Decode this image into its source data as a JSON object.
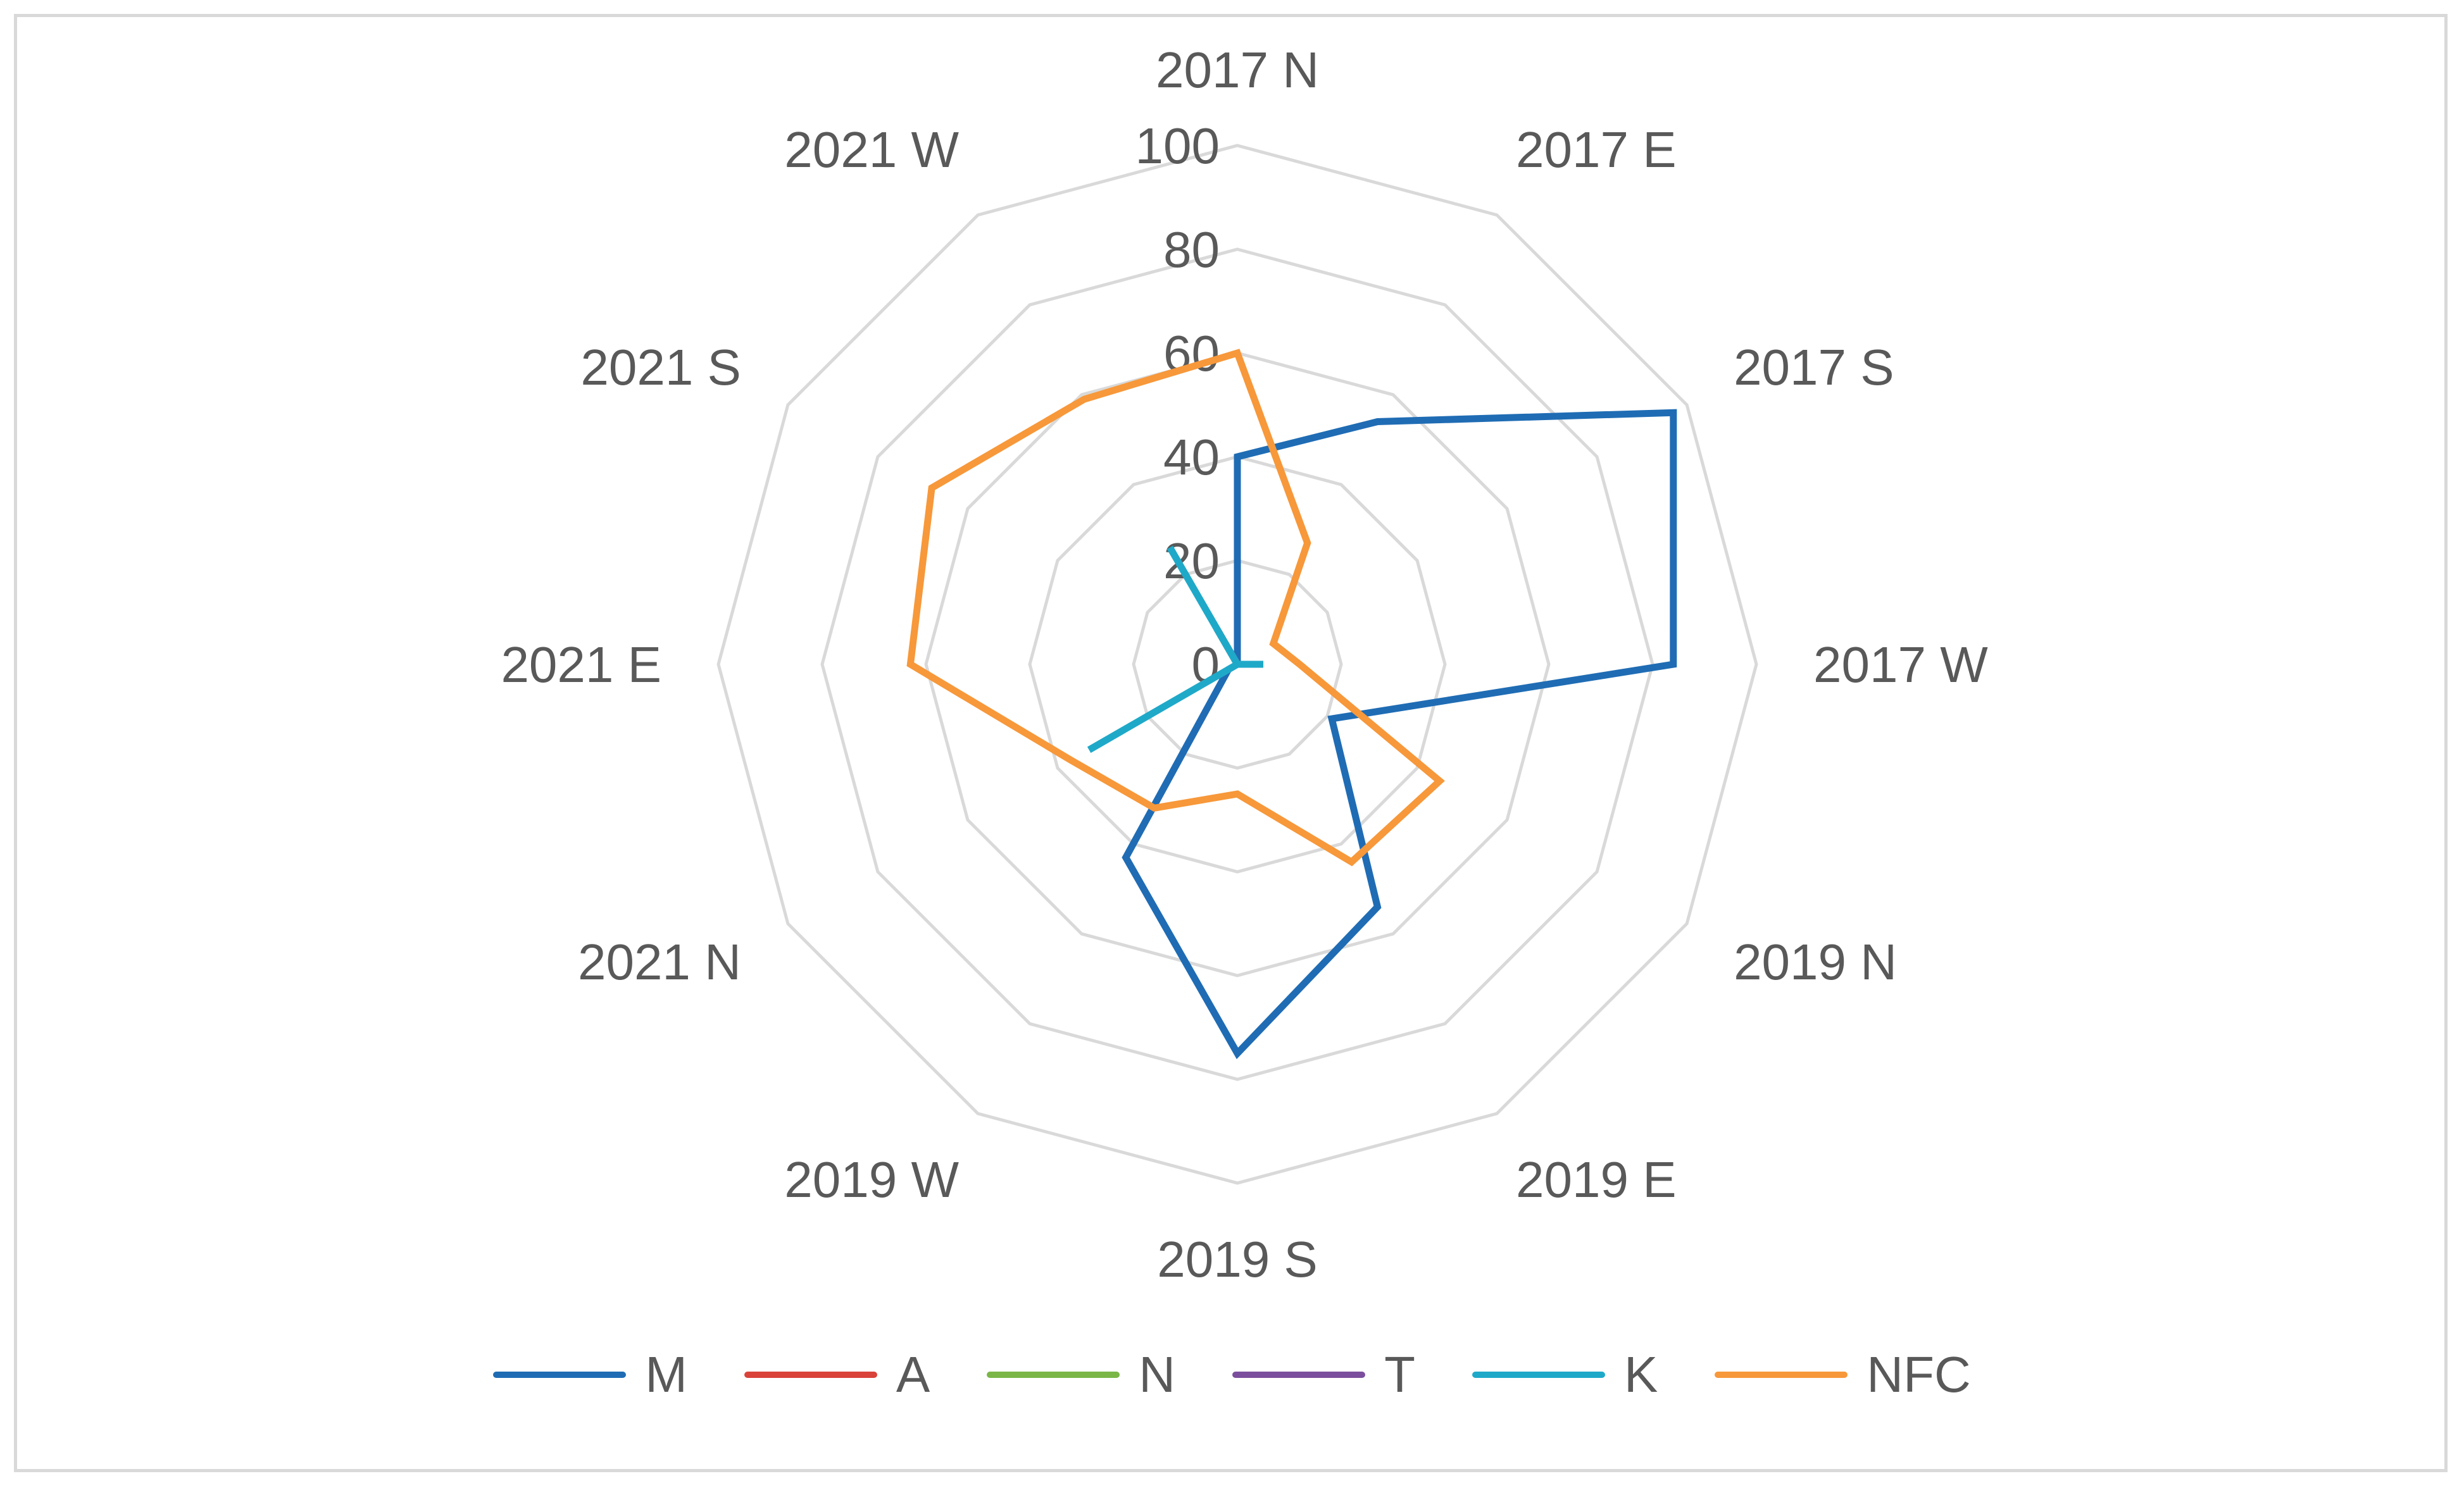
{
  "chart_data": {
    "type": "radar",
    "categories": [
      "2017 N",
      "2017 E",
      "2017 S",
      "2017 W",
      "2019 N",
      "2019 E",
      "2019 S",
      "2019 W",
      "2021 N",
      "2021 E",
      "2021 S",
      "2021 W"
    ],
    "ticks": [
      "0",
      "20",
      "40",
      "60",
      "80",
      "100"
    ],
    "rlim": [
      0,
      100
    ],
    "grid": true,
    "legend_position": "bottom",
    "series": [
      {
        "name": "M",
        "color": "#1f6cb4",
        "values": [
          40,
          54,
          97,
          84,
          21,
          54,
          75,
          43,
          2,
          0,
          0,
          0
        ]
      },
      {
        "name": "A",
        "color": "#d9433a",
        "values": [
          0,
          0,
          0,
          0,
          0,
          0,
          0,
          0,
          0,
          0,
          0,
          8
        ]
      },
      {
        "name": "N",
        "color": "#7ab648",
        "values": [
          0,
          0,
          0,
          0,
          0,
          0,
          0,
          0,
          0,
          0,
          0,
          0
        ]
      },
      {
        "name": "T",
        "color": "#7b4f9d",
        "values": [
          0,
          0,
          0,
          0,
          0,
          0,
          0,
          0,
          0,
          0,
          0,
          0
        ]
      },
      {
        "name": "K",
        "color": "#1fa9c9",
        "values": [
          0,
          0,
          0,
          5,
          0,
          0,
          0,
          0,
          33,
          0,
          0,
          26
        ]
      },
      {
        "name": "NFC",
        "color": "#f7983a",
        "values": [
          60,
          27,
          8,
          12,
          45,
          44,
          25,
          32,
          37,
          63,
          68,
          59
        ]
      }
    ]
  }
}
